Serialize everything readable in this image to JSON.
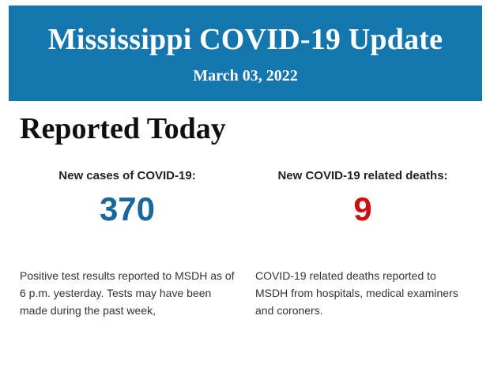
{
  "banner": {
    "title": "Mississippi COVID-19 Update",
    "date": "March 03, 2022",
    "background": "#1476ad",
    "text_color": "#ffffff"
  },
  "section": {
    "heading": "Reported Today"
  },
  "stats": {
    "cases": {
      "label": "New cases of COVID-19:",
      "value": "370",
      "color": "#17689d",
      "description": "Positive test results reported to MSDH as of 6 p.m. yesterday. Tests may have been made during the past week,"
    },
    "deaths": {
      "label": "New COVID-19 related deaths:",
      "value": "9",
      "color": "#cc1111",
      "description": "COVID-19 related deaths reported to MSDH from hospitals, medical examiners and coroners."
    }
  }
}
